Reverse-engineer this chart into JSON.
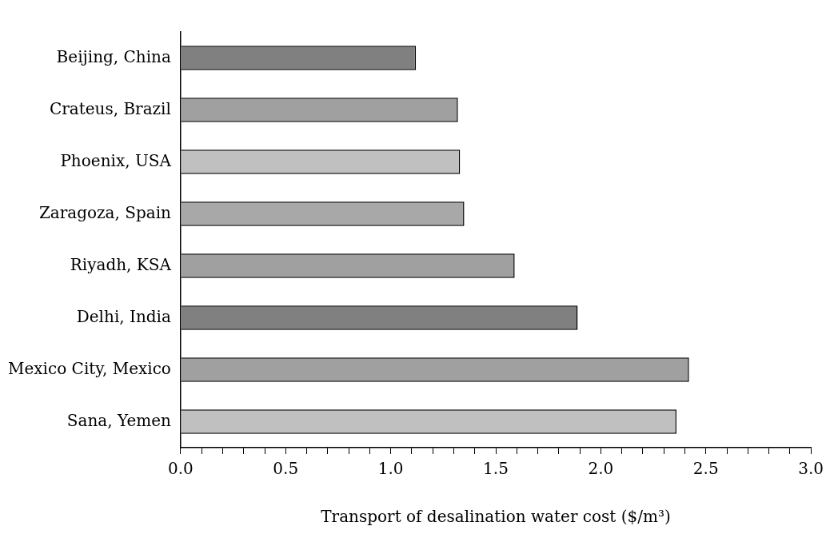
{
  "chart_data": {
    "type": "bar",
    "orientation": "horizontal",
    "xlabel": "Transport of desalination water cost ($/m³)",
    "categories": [
      "Beijing, China",
      "Crateus, Brazil",
      "Phoenix, USA",
      "Zaragoza, Spain",
      "Riyadh, KSA",
      "Delhi, India",
      "Mexico City, Mexico",
      "Sana, Yemen"
    ],
    "values": [
      1.12,
      1.32,
      1.33,
      1.35,
      1.59,
      1.89,
      2.42,
      2.36
    ],
    "colors": [
      "#808080",
      "#a0a0a0",
      "#c0c0c0",
      "#a8a8a8",
      "#a0a0a0",
      "#808080",
      "#a0a0a0",
      "#c0c0c0"
    ],
    "xlim": [
      0,
      3
    ],
    "xticks": [
      {
        "value": 0,
        "label": "0.0"
      },
      {
        "value": 0.1,
        "label": null
      },
      {
        "value": 0.2,
        "label": null
      },
      {
        "value": 0.3,
        "label": null
      },
      {
        "value": 0.4,
        "label": null
      },
      {
        "value": 0.5,
        "label": "0.5"
      },
      {
        "value": 0.6,
        "label": null
      },
      {
        "value": 0.7,
        "label": null
      },
      {
        "value": 0.8,
        "label": null
      },
      {
        "value": 0.9,
        "label": null
      },
      {
        "value": 1,
        "label": "1.0"
      },
      {
        "value": 1.1,
        "label": null
      },
      {
        "value": 1.2,
        "label": null
      },
      {
        "value": 1.3,
        "label": null
      },
      {
        "value": 1.4,
        "label": null
      },
      {
        "value": 1.5,
        "label": "1.5"
      },
      {
        "value": 1.6,
        "label": null
      },
      {
        "value": 1.7,
        "label": null
      },
      {
        "value": 1.8,
        "label": null
      },
      {
        "value": 1.9,
        "label": null
      },
      {
        "value": 2,
        "label": "2.0"
      },
      {
        "value": 2.1,
        "label": null
      },
      {
        "value": 2.2,
        "label": null
      },
      {
        "value": 2.3,
        "label": null
      },
      {
        "value": 2.4,
        "label": null
      },
      {
        "value": 2.5,
        "label": "2.5"
      },
      {
        "value": 2.6,
        "label": null
      },
      {
        "value": 2.7,
        "label": null
      },
      {
        "value": 2.8,
        "label": null
      },
      {
        "value": 2.9,
        "label": null
      },
      {
        "value": 3,
        "label": "3.0"
      }
    ],
    "grid": false,
    "legend": false
  }
}
